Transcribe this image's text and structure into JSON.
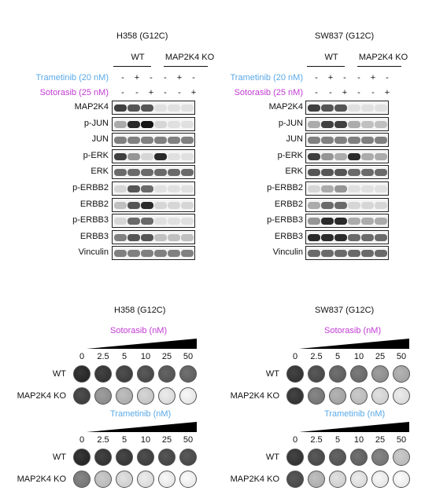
{
  "colors": {
    "trametinib": "#5aa9e6",
    "sotorasib": "#c23bd4"
  },
  "western": {
    "panels": [
      {
        "cell_line": "H358 (G12C)",
        "groups": [
          "WT",
          "MAP2K4  KO"
        ],
        "trametinib_label": "Trametinib (20 nM)",
        "sotorasib_label": "Sotorasib (25 nM)",
        "trametinib_signs": [
          "-",
          "+",
          "-",
          "-",
          "+",
          "-"
        ],
        "sotorasib_signs": [
          "-",
          "-",
          "+",
          "-",
          "-",
          "+"
        ],
        "blots": [
          {
            "label": "MAP2K4",
            "levels": [
              0.8,
              0.7,
              0.7,
              0.05,
              0.05,
              0.05
            ]
          },
          {
            "label": "p-JUN",
            "levels": [
              0.3,
              0.9,
              1.0,
              0.1,
              0.05,
              0.05
            ]
          },
          {
            "label": "JUN",
            "levels": [
              0.5,
              0.5,
              0.5,
              0.5,
              0.5,
              0.5
            ]
          },
          {
            "label": "p-ERK",
            "levels": [
              0.8,
              0.4,
              0.1,
              0.9,
              0.05,
              0.05
            ]
          },
          {
            "label": "ERK",
            "levels": [
              0.6,
              0.6,
              0.6,
              0.6,
              0.6,
              0.6
            ]
          },
          {
            "label": "p-ERBB2",
            "levels": [
              0.1,
              0.7,
              0.6,
              0.05,
              0.05,
              0.05
            ]
          },
          {
            "label": "ERBB2",
            "levels": [
              0.2,
              0.7,
              0.9,
              0.1,
              0.1,
              0.1
            ]
          },
          {
            "label": "p-ERBB3",
            "levels": [
              0.1,
              0.6,
              0.6,
              0.05,
              0.05,
              0.05
            ]
          },
          {
            "label": "ERBB3",
            "levels": [
              0.5,
              0.7,
              0.7,
              0.2,
              0.2,
              0.2
            ]
          },
          {
            "label": "Vinculin",
            "levels": [
              0.5,
              0.5,
              0.5,
              0.5,
              0.5,
              0.5
            ]
          }
        ]
      },
      {
        "cell_line": "SW837 (G12C)",
        "groups": [
          "WT",
          "MAP2K4  KO"
        ],
        "trametinib_label": "Trametinib (20 nM)",
        "sotorasib_label": "Sotorasib (25 nM)",
        "trametinib_signs": [
          "-",
          "+",
          "-",
          "-",
          "+",
          "-"
        ],
        "sotorasib_signs": [
          "-",
          "-",
          "+",
          "-",
          "-",
          "+"
        ],
        "blots": [
          {
            "label": "MAP2K4",
            "levels": [
              0.8,
              0.7,
              0.7,
              0.05,
              0.05,
              0.05
            ]
          },
          {
            "label": "p-JUN",
            "levels": [
              0.3,
              0.8,
              0.8,
              0.3,
              0.2,
              0.2
            ]
          },
          {
            "label": "JUN",
            "levels": [
              0.5,
              0.5,
              0.5,
              0.5,
              0.5,
              0.5
            ]
          },
          {
            "label": "p-ERK",
            "levels": [
              0.8,
              0.4,
              0.3,
              0.9,
              0.3,
              0.3
            ]
          },
          {
            "label": "ERK",
            "levels": [
              0.7,
              0.7,
              0.7,
              0.6,
              0.6,
              0.6
            ]
          },
          {
            "label": "p-ERBB2",
            "levels": [
              0.1,
              0.3,
              0.4,
              0.05,
              0.05,
              0.05
            ]
          },
          {
            "label": "ERBB2",
            "levels": [
              0.3,
              0.6,
              0.6,
              0.1,
              0.1,
              0.1
            ]
          },
          {
            "label": "p-ERBB3",
            "levels": [
              0.4,
              0.9,
              0.9,
              0.3,
              0.3,
              0.3
            ]
          },
          {
            "label": "ERBB3",
            "levels": [
              0.9,
              0.9,
              0.9,
              0.6,
              0.6,
              0.6
            ]
          },
          {
            "label": "Vinculin",
            "levels": [
              0.6,
              0.6,
              0.6,
              0.6,
              0.6,
              0.6
            ]
          }
        ]
      }
    ]
  },
  "colony": {
    "panels": [
      {
        "cell_line": "H358 (G12C)",
        "assays": [
          {
            "drug_label": "Sotorasib (nM)",
            "drug": "sotorasib",
            "concentrations": [
              "0",
              "2.5",
              "5",
              "10",
              "25",
              "50"
            ],
            "rows": [
              {
                "label": "WT",
                "density": [
                  0.95,
                  0.9,
                  0.85,
                  0.8,
                  0.75,
                  0.7
                ]
              },
              {
                "label": "MAP2K4  KO",
                "density": [
                  0.85,
                  0.5,
                  0.35,
                  0.25,
                  0.15,
                  0.1
                ]
              }
            ]
          },
          {
            "drug_label": "Trametinib (nM)",
            "drug": "trametinib",
            "concentrations": [
              "0",
              "2.5",
              "5",
              "10",
              "25",
              "50"
            ],
            "rows": [
              {
                "label": "WT",
                "density": [
                  0.95,
                  0.9,
                  0.88,
                  0.85,
                  0.82,
                  0.8
                ]
              },
              {
                "label": "MAP2K4  KO",
                "density": [
                  0.6,
                  0.3,
                  0.2,
                  0.15,
                  0.1,
                  0.08
                ]
              }
            ]
          }
        ]
      },
      {
        "cell_line": "SW837 (G12C)",
        "assays": [
          {
            "drug_label": "Sotorasib (nM)",
            "drug": "sotorasib",
            "concentrations": [
              "0",
              "2.5",
              "5",
              "10",
              "25",
              "50"
            ],
            "rows": [
              {
                "label": "WT",
                "density": [
                  0.9,
                  0.8,
                  0.7,
                  0.65,
                  0.5,
                  0.4
                ]
              },
              {
                "label": "MAP2K4  KO",
                "density": [
                  0.9,
                  0.6,
                  0.4,
                  0.3,
                  0.2,
                  0.15
                ]
              }
            ]
          },
          {
            "drug_label": "Trametinib (nM)",
            "drug": "trametinib",
            "concentrations": [
              "0",
              "2.5",
              "5",
              "10",
              "25",
              "50"
            ],
            "rows": [
              {
                "label": "WT",
                "density": [
                  0.9,
                  0.8,
                  0.75,
                  0.7,
                  0.6,
                  0.3
                ]
              },
              {
                "label": "MAP2K4  KO",
                "density": [
                  0.8,
                  0.35,
                  0.2,
                  0.15,
                  0.1,
                  0.08
                ]
              }
            ]
          }
        ]
      }
    ]
  }
}
